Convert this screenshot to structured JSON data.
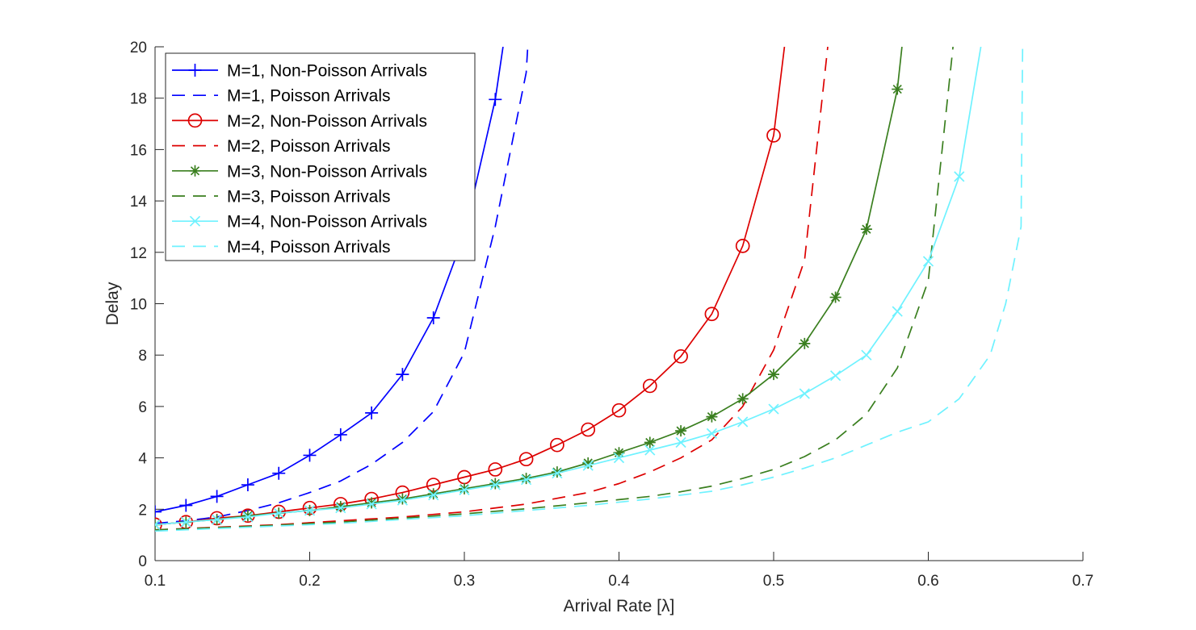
{
  "chart_data": {
    "type": "line",
    "title": "",
    "xlabel": "Arrival Rate [λ]",
    "ylabel": "Delay",
    "xlim": [
      0.1,
      0.7
    ],
    "ylim": [
      0,
      20
    ],
    "xticks": [
      0.1,
      0.2,
      0.3,
      0.4,
      0.5,
      0.6,
      0.7
    ],
    "yticks": [
      0,
      2,
      4,
      6,
      8,
      10,
      12,
      14,
      16,
      18,
      20
    ],
    "grid": false,
    "legend_position": "top-left",
    "series": [
      {
        "name": "M=1, Non-Poisson Arrivals",
        "color": "#0000ff",
        "style": "solid",
        "marker": "plus",
        "x": [
          0.1,
          0.12,
          0.14,
          0.16,
          0.18,
          0.2,
          0.22,
          0.24,
          0.26,
          0.28,
          0.3,
          0.32,
          0.325
        ],
        "y": [
          1.9,
          2.15,
          2.5,
          2.95,
          3.4,
          4.1,
          4.9,
          5.75,
          7.25,
          9.45,
          12.7,
          17.95,
          20.0
        ]
      },
      {
        "name": "M=1, Poisson Arrivals",
        "color": "#0000ff",
        "style": "dashed",
        "marker": "none",
        "x": [
          0.1,
          0.12,
          0.14,
          0.16,
          0.18,
          0.2,
          0.22,
          0.24,
          0.26,
          0.28,
          0.3,
          0.32,
          0.34,
          0.341
        ],
        "y": [
          1.45,
          1.55,
          1.7,
          1.95,
          2.25,
          2.65,
          3.1,
          3.75,
          4.6,
          5.8,
          8.1,
          13.0,
          19.0,
          20.0
        ]
      },
      {
        "name": "M=2, Non-Poisson Arrivals",
        "color": "#dd0000",
        "style": "solid",
        "marker": "circle",
        "x": [
          0.1,
          0.12,
          0.14,
          0.16,
          0.18,
          0.2,
          0.22,
          0.24,
          0.26,
          0.28,
          0.3,
          0.32,
          0.34,
          0.36,
          0.38,
          0.4,
          0.42,
          0.44,
          0.46,
          0.48,
          0.5,
          0.507
        ],
        "y": [
          1.4,
          1.5,
          1.65,
          1.75,
          1.9,
          2.05,
          2.2,
          2.4,
          2.65,
          2.95,
          3.25,
          3.55,
          3.95,
          4.5,
          5.1,
          5.85,
          6.8,
          7.95,
          9.6,
          12.25,
          16.55,
          20.0
        ]
      },
      {
        "name": "M=2, Poisson Arrivals",
        "color": "#dd0000",
        "style": "dashed",
        "marker": "none",
        "x": [
          0.1,
          0.14,
          0.18,
          0.22,
          0.26,
          0.3,
          0.34,
          0.38,
          0.4,
          0.42,
          0.44,
          0.46,
          0.48,
          0.5,
          0.52,
          0.535
        ],
        "y": [
          1.2,
          1.3,
          1.4,
          1.55,
          1.7,
          1.9,
          2.2,
          2.65,
          3.0,
          3.45,
          4.0,
          4.7,
          6.0,
          8.2,
          11.7,
          20.0
        ]
      },
      {
        "name": "M=3, Non-Poisson Arrivals",
        "color": "#3a7f1f",
        "style": "solid",
        "marker": "star",
        "x": [
          0.1,
          0.12,
          0.14,
          0.16,
          0.18,
          0.2,
          0.22,
          0.24,
          0.26,
          0.28,
          0.3,
          0.32,
          0.34,
          0.36,
          0.38,
          0.4,
          0.42,
          0.44,
          0.46,
          0.48,
          0.5,
          0.52,
          0.54,
          0.56,
          0.58,
          0.583
        ],
        "y": [
          1.4,
          1.5,
          1.6,
          1.75,
          1.85,
          1.95,
          2.1,
          2.25,
          2.4,
          2.6,
          2.8,
          3.0,
          3.2,
          3.45,
          3.8,
          4.2,
          4.6,
          5.05,
          5.6,
          6.3,
          7.25,
          8.45,
          10.25,
          12.9,
          18.35,
          20.0
        ]
      },
      {
        "name": "M=3, Poisson Arrivals",
        "color": "#3a7f1f",
        "style": "dashed",
        "marker": "none",
        "x": [
          0.1,
          0.14,
          0.18,
          0.22,
          0.26,
          0.3,
          0.34,
          0.38,
          0.42,
          0.44,
          0.46,
          0.48,
          0.5,
          0.52,
          0.54,
          0.56,
          0.58,
          0.6,
          0.616
        ],
        "y": [
          1.2,
          1.28,
          1.38,
          1.5,
          1.65,
          1.82,
          2.02,
          2.25,
          2.5,
          2.68,
          2.9,
          3.2,
          3.55,
          4.05,
          4.7,
          5.7,
          7.5,
          10.9,
          20.0
        ]
      },
      {
        "name": "M=4, Non-Poisson Arrivals",
        "color": "#6ff2ff",
        "style": "solid",
        "marker": "x",
        "x": [
          0.1,
          0.12,
          0.14,
          0.16,
          0.18,
          0.2,
          0.22,
          0.24,
          0.26,
          0.28,
          0.3,
          0.32,
          0.34,
          0.36,
          0.38,
          0.4,
          0.42,
          0.44,
          0.46,
          0.48,
          0.5,
          0.52,
          0.54,
          0.56,
          0.58,
          0.6,
          0.62,
          0.634
        ],
        "y": [
          1.4,
          1.5,
          1.6,
          1.7,
          1.85,
          1.95,
          2.05,
          2.2,
          2.35,
          2.55,
          2.75,
          2.95,
          3.15,
          3.4,
          3.7,
          4.0,
          4.3,
          4.6,
          4.95,
          5.4,
          5.9,
          6.5,
          7.2,
          8.0,
          9.7,
          11.65,
          14.95,
          20.0
        ]
      },
      {
        "name": "M=4, Poisson Arrivals",
        "color": "#6ff2ff",
        "style": "dashed",
        "marker": "none",
        "x": [
          0.1,
          0.14,
          0.18,
          0.22,
          0.26,
          0.3,
          0.34,
          0.38,
          0.42,
          0.46,
          0.48,
          0.5,
          0.52,
          0.54,
          0.56,
          0.58,
          0.6,
          0.62,
          0.64,
          0.65,
          0.66,
          0.661
        ],
        "y": [
          1.15,
          1.25,
          1.35,
          1.45,
          1.6,
          1.75,
          1.95,
          2.15,
          2.4,
          2.7,
          2.95,
          3.25,
          3.6,
          4.0,
          4.5,
          5.0,
          5.4,
          6.3,
          8.0,
          10.0,
          13.0,
          20.0
        ]
      }
    ]
  }
}
